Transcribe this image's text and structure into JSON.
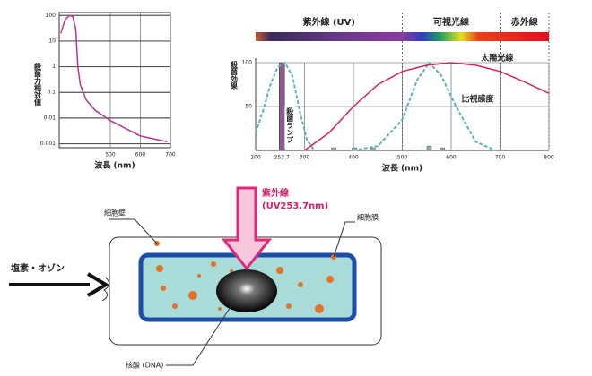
{
  "chart_data": [
    {
      "type": "line",
      "y_label": "殺菌力相対値",
      "x_label": "波長 (nm)",
      "log_y": true,
      "xlim": [
        330,
        700
      ],
      "xticks": [
        500,
        600,
        700
      ],
      "ylim": [
        0.0007,
        130
      ],
      "yticks": [
        100,
        10,
        1,
        0.1,
        0.01,
        0.001
      ],
      "grid": true,
      "series": [
        {
          "color": "#b8348f",
          "x": [
            335,
            350,
            365,
            375,
            385,
            392,
            400,
            420,
            450,
            500,
            550,
            600,
            650,
            690
          ],
          "values": [
            20,
            70,
            100,
            90,
            30,
            1,
            0.2,
            0.05,
            0.02,
            0.008,
            0.004,
            0.002,
            0.0015,
            0.0012
          ]
        }
      ]
    },
    {
      "type": "line",
      "y_label": "殺菌効果",
      "x_label": "波長 (nm)",
      "xlim": [
        200,
        800
      ],
      "xticks": [
        200,
        253.7,
        300,
        400,
        500,
        600,
        700,
        800
      ],
      "ylim": [
        0,
        100
      ],
      "yticks": [
        50,
        100
      ],
      "grid": true,
      "regions": [
        {
          "label": "紫外線 (UV)",
          "from": 200,
          "to": 500
        },
        {
          "label": "可視光線",
          "from": 500,
          "to": 700
        },
        {
          "label": "赤外線",
          "from": 700,
          "to": 800
        }
      ],
      "series": [
        {
          "color": "#5fb3b8",
          "dashed": true,
          "x": [
            200,
            215,
            230,
            245,
            260,
            275,
            290,
            305,
            320
          ],
          "values": [
            20,
            45,
            75,
            95,
            100,
            85,
            45,
            12,
            0
          ]
        },
        {
          "name": "比視感度",
          "color": "#5fb3b8",
          "dashed": true,
          "x": [
            400,
            450,
            500,
            530,
            555,
            580,
            610,
            650,
            690
          ],
          "values": [
            0,
            5,
            35,
            80,
            100,
            85,
            50,
            10,
            0
          ]
        },
        {
          "name": "太陽光線",
          "color": "#d0245a",
          "x": [
            300,
            350,
            400,
            450,
            500,
            550,
            600,
            650,
            700,
            750,
            800
          ],
          "values": [
            0,
            20,
            50,
            75,
            90,
            97,
            100,
            97,
            90,
            78,
            65
          ]
        }
      ],
      "lamp": {
        "label": "殺菌ランプ",
        "x": 253.7,
        "value": 100,
        "color": "#8b5c8e"
      },
      "lines": {
        "x": [
          360,
          402,
          440,
          555,
          582
        ],
        "values": [
          3,
          3,
          3,
          5,
          3
        ],
        "color": "#9aa8b0"
      }
    }
  ],
  "diagram": {
    "uv_label": "紫外線",
    "uv_sub": "(UV253.7nm)",
    "cell_wall": "細胞壁",
    "cell_membrane": "細胞膜",
    "chemicals": "塩素・オゾン",
    "nucleic_acid": "核酸 (DNA)"
  }
}
